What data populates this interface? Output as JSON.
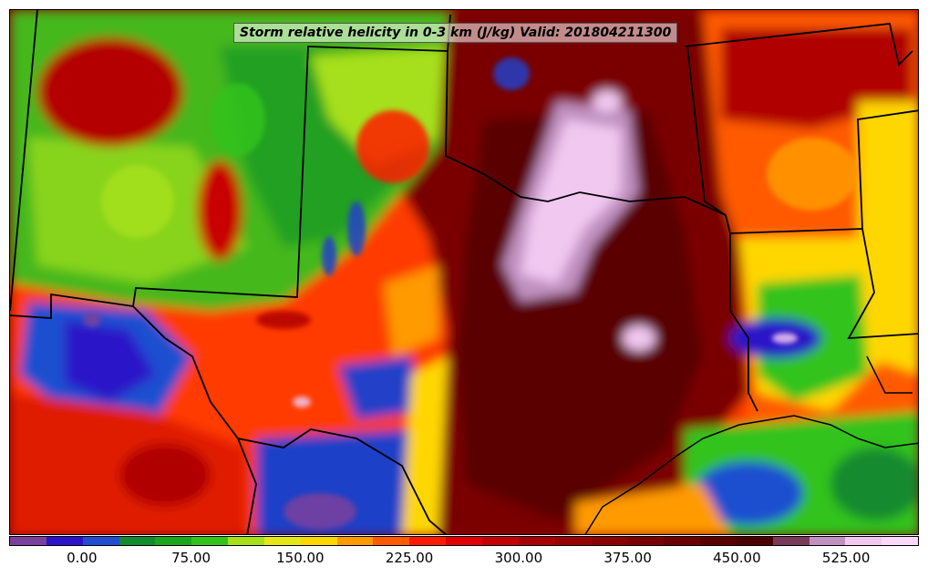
{
  "map": {
    "title": "Storm relative helicity in 0-3 km (J/kg) Valid: 201804211300",
    "field": "Storm relative helicity in 0-3 km",
    "units": "J/kg",
    "valid_time": "201804211300",
    "features": [
      "state-borders",
      "coastline"
    ]
  },
  "colorbar": {
    "colors": [
      "#7b3f9e",
      "#2b14c8",
      "#1f4fd0",
      "#128a2e",
      "#19a619",
      "#33c31a",
      "#a6e01a",
      "#e6e619",
      "#ffd700",
      "#ff9a00",
      "#ff5a00",
      "#ff1a00",
      "#e00000",
      "#c40000",
      "#a80000",
      "#960000",
      "#8a0000",
      "#7a0000",
      "#6a0000",
      "#5a0000",
      "#4a0000",
      "#7a3a5a",
      "#c090c0",
      "#f0c8f0",
      "#fad8fa"
    ],
    "tick_labels": [
      "0.00",
      "75.00",
      "150.00",
      "225.00",
      "300.00",
      "375.00",
      "450.00",
      "525.00"
    ],
    "tick_values": [
      0,
      75,
      150,
      225,
      300,
      375,
      450,
      525
    ],
    "range": [
      -50,
      575
    ]
  }
}
